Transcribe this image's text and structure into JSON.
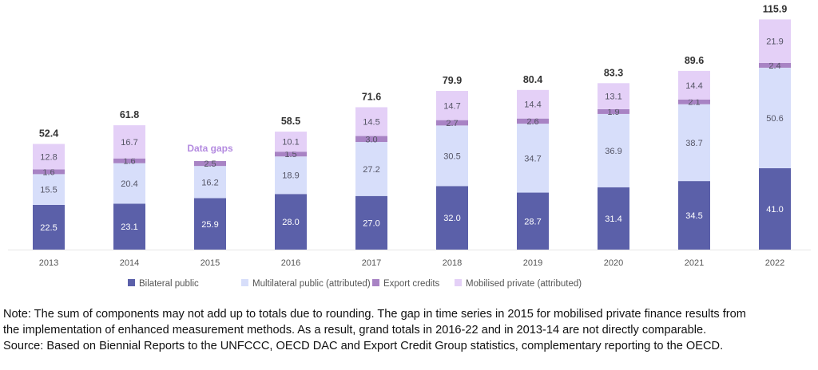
{
  "chart_data": {
    "type": "bar",
    "stacked": true,
    "categories": [
      "2013",
      "2014",
      "2015",
      "2016",
      "2017",
      "2018",
      "2019",
      "2020",
      "2021",
      "2022"
    ],
    "series": [
      {
        "name": "Bilateral public",
        "color": "#5b60a9",
        "values": [
          22.5,
          23.1,
          25.9,
          28.0,
          27.0,
          32.0,
          28.7,
          31.4,
          34.5,
          41.0
        ]
      },
      {
        "name": "Multilateral public (attributed)",
        "color": "#d7defa",
        "values": [
          15.5,
          20.4,
          16.2,
          18.9,
          27.2,
          30.5,
          34.7,
          36.9,
          38.7,
          50.6
        ]
      },
      {
        "name": "Export credits",
        "color": "#a883c4",
        "values": [
          1.6,
          1.6,
          2.5,
          1.5,
          3.0,
          2.7,
          2.6,
          1.9,
          2.1,
          2.4
        ]
      },
      {
        "name": "Mobilised private (attributed)",
        "color": "#e4d0f7",
        "values": [
          12.8,
          16.7,
          null,
          10.1,
          14.5,
          14.7,
          14.4,
          13.1,
          14.4,
          21.9
        ]
      }
    ],
    "totals": [
      "52.4",
      "61.8",
      null,
      "58.5",
      "71.6",
      "79.9",
      "80.4",
      "83.3",
      "89.6",
      "115.9"
    ],
    "annotations": [
      {
        "category": "2015",
        "text": "Data gaps",
        "color": "#b48be0"
      }
    ],
    "ylim": [
      0,
      120
    ],
    "grid": false,
    "legend": "bottom",
    "xlabel": "",
    "ylabel": ""
  },
  "note": {
    "lines": [
      "Note: The sum of components may not add up to totals due to rounding. The gap in time series in 2015 for mobilised private finance results from",
      "the implementation of enhanced measurement methods. As a result, grand totals in 2016-22 and in 2013-14 are not directly comparable.",
      "Source: Based on Biennial Reports to the UNFCCC, OECD DAC and Export Credit Group statistics, complementary reporting to the OECD."
    ]
  }
}
